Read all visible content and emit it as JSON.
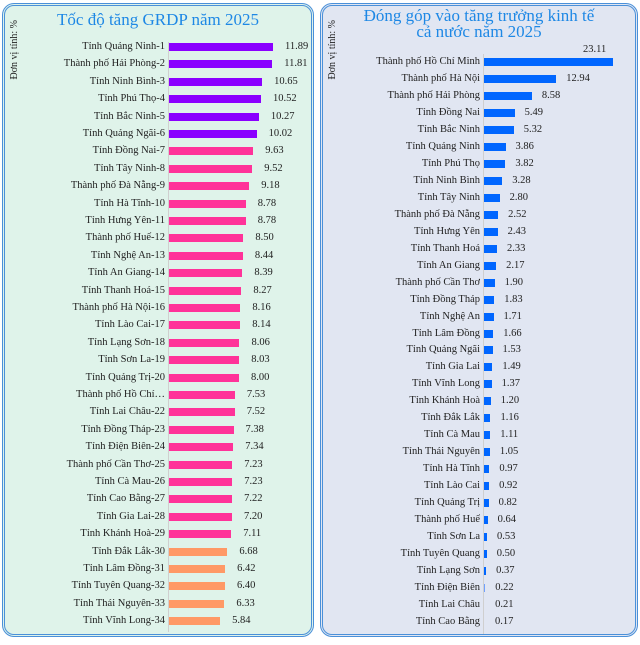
{
  "chart_data": [
    {
      "type": "bar",
      "orientation": "horizontal",
      "title": "Tốc độ tăng GRDP năm 2025",
      "ylabel": "Đơn vị tính: %",
      "categories": [
        "Tỉnh Quảng Ninh-1",
        "Thành phố Hải Phòng-2",
        "Tỉnh Ninh Bình-3",
        "Tỉnh Phú Thọ-4",
        "Tỉnh Bắc Ninh-5",
        "Tỉnh Quảng Ngãi-6",
        "Tỉnh Đồng Nai-7",
        "Tỉnh Tây Ninh-8",
        "Thành phố Đà Nẵng-9",
        "Tỉnh Hà Tĩnh-10",
        "Tỉnh Hưng Yên-11",
        "Thành phố Huế-12",
        "Tỉnh Nghệ An-13",
        "Tỉnh An Giang-14",
        "Tỉnh Thanh Hoá-15",
        "Thành phố Hà Nội-16",
        "Tỉnh Lào Cai-17",
        "Tỉnh Lạng Sơn-18",
        "Tỉnh Sơn La-19",
        "Tỉnh Quảng Trị-20",
        "Thành phố Hồ Chí…",
        "Tỉnh Lai Châu-22",
        "Tỉnh Đồng Tháp-23",
        "Tỉnh Điện Biên-24",
        "Thành phố Cần Thơ-25",
        "Tỉnh Cà Mau-26",
        "Tỉnh Cao Bằng-27",
        "Tỉnh Gia Lai-28",
        "Tỉnh Khánh Hoà-29",
        "Tỉnh Đắk Lắk-30",
        "Tỉnh Lâm Đồng-31",
        "Tỉnh Tuyên Quang-32",
        "Tỉnh Thái Nguyên-33",
        "Tỉnh Vĩnh Long-34"
      ],
      "values": [
        11.89,
        11.81,
        10.65,
        10.52,
        10.27,
        10.02,
        9.63,
        9.52,
        9.18,
        8.78,
        8.78,
        8.5,
        8.44,
        8.39,
        8.27,
        8.16,
        8.14,
        8.06,
        8.03,
        8.0,
        7.53,
        7.52,
        7.38,
        7.34,
        7.23,
        7.23,
        7.22,
        7.2,
        7.11,
        6.68,
        6.42,
        6.4,
        6.33,
        5.84
      ],
      "labels": [
        "11.89",
        "11.81",
        "10.65",
        "10.52",
        "10.27",
        "10.02",
        "9.63",
        "9.52",
        "9.18",
        "8.78",
        "8.78",
        "8.50",
        "8.44",
        "8.39",
        "8.27",
        "8.16",
        "8.14",
        "8.06",
        "8.03",
        "8.00",
        "7.53",
        "7.52",
        "7.38",
        "7.34",
        "7.23",
        "7.23",
        "7.22",
        "7.20",
        "7.11",
        "6.68",
        "6.42",
        "6.40",
        "6.33",
        "5.84"
      ],
      "colors": {
        "top": "#8a00ff",
        "mid": "#ff3399",
        "low": "#ff9966"
      },
      "xlim": [
        0,
        12
      ]
    },
    {
      "type": "bar",
      "orientation": "horizontal",
      "title": "Đóng góp vào tăng trưởng kinh tế cả nước năm 2025",
      "title_lines": [
        "Đóng góp vào tăng trưởng kinh tế",
        "cả nước năm 2025"
      ],
      "ylabel": "Đơn vị tính: %",
      "categories": [
        "Thành phố Hồ Chí Minh",
        "Thành phố Hà Nội",
        "Thành phố Hải Phòng",
        "Tỉnh Đồng Nai",
        "Tỉnh Bắc Ninh",
        "Tỉnh Quảng Ninh",
        "Tỉnh Phú Thọ",
        "Tỉnh Ninh Bình",
        "Tỉnh Tây Ninh",
        "Thành phố Đà Nẵng",
        "Tỉnh Hưng Yên",
        "Tỉnh Thanh Hoá",
        "Tỉnh An Giang",
        "Thành phố Cần Thơ",
        "Tỉnh Đồng Tháp",
        "Tỉnh Nghệ An",
        "Tỉnh Lâm Đồng",
        "Tỉnh Quảng Ngãi",
        "Tỉnh Gia Lai",
        "Tỉnh Vĩnh Long",
        "Tỉnh Khánh Hoà",
        "Tỉnh Đắk Lắk",
        "Tỉnh Cà Mau",
        "Tỉnh Thái Nguyên",
        "Tỉnh Hà Tĩnh",
        "Tỉnh Lào Cai",
        "Tỉnh Quảng Trị",
        "Thành phố Huế",
        "Tỉnh Sơn La",
        "Tỉnh Tuyên Quang",
        "Tỉnh Lạng Sơn",
        "Tỉnh Điện Biên",
        "Tỉnh Lai Châu",
        "Tỉnh Cao Bằng"
      ],
      "values": [
        23.11,
        12.94,
        8.58,
        5.49,
        5.32,
        3.86,
        3.82,
        3.28,
        2.8,
        2.52,
        2.43,
        2.33,
        2.17,
        1.9,
        1.83,
        1.71,
        1.66,
        1.53,
        1.49,
        1.37,
        1.2,
        1.16,
        1.11,
        1.05,
        0.97,
        0.92,
        0.82,
        0.64,
        0.53,
        0.5,
        0.37,
        0.22,
        0.21,
        0.17
      ],
      "labels": [
        "23.11",
        "12.94",
        "8.58",
        "5.49",
        "5.32",
        "3.86",
        "3.82",
        "3.28",
        "2.80",
        "2.52",
        "2.43",
        "2.33",
        "2.17",
        "1.90",
        "1.83",
        "1.71",
        "1.66",
        "1.53",
        "1.49",
        "1.37",
        "1.20",
        "1.16",
        "1.11",
        "1.05",
        "0.97",
        "0.92",
        "0.82",
        "0.64",
        "0.53",
        "0.50",
        "0.37",
        "0.22",
        "0.21",
        "0.17"
      ],
      "colors": {
        "bar": "#0066ff"
      },
      "xlim": [
        0,
        24
      ]
    }
  ]
}
